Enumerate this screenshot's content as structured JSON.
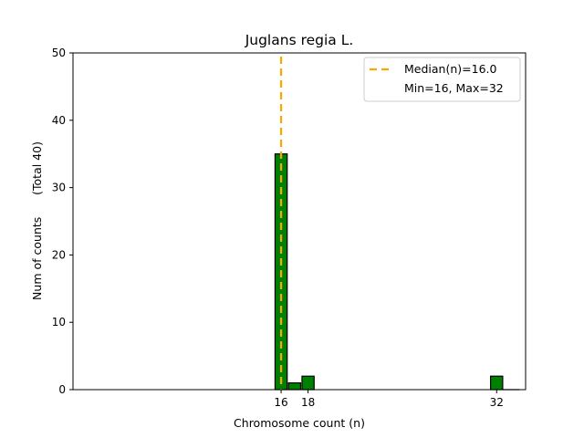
{
  "chart_data": {
    "type": "bar",
    "title": "Juglans regia L.",
    "xlabel": "Chromosome count (n)",
    "ylabel": "Num of counts      (Total 40)",
    "ylim": [
      0,
      50
    ],
    "xlim": [
      0.55,
      34.15
    ],
    "yticks": [
      0,
      10,
      20,
      30,
      40,
      50
    ],
    "xticks": [
      16,
      18,
      32
    ],
    "bin_width": 0.9,
    "bars": [
      {
        "x": 16,
        "value": 35
      },
      {
        "x": 17,
        "value": 1
      },
      {
        "x": 18,
        "value": 2
      },
      {
        "x": 32,
        "value": 2
      }
    ],
    "extra_baseline_end": 33.7,
    "median_line": {
      "x": 16,
      "label": "Median(n)=16.0"
    },
    "legend": {
      "placement": "upper right",
      "entries": [
        "Median(n)=16.0",
        "Min=16, Max=32"
      ]
    },
    "colors": {
      "bar": "#008000",
      "bar_edge": "#000000",
      "median": "#ffa500"
    },
    "grid": false
  }
}
